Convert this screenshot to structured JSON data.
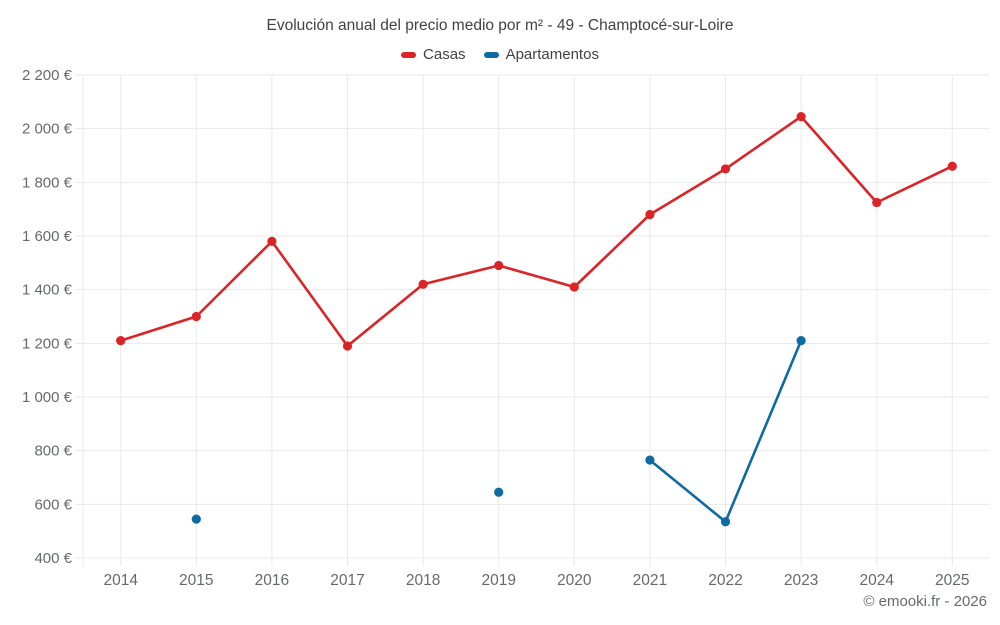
{
  "attribution": "© emooki.fr - 2026",
  "chart_data": {
    "type": "line",
    "title": "Evolución anual del precio medio por m² - 49 - Champtocé-sur-Loire",
    "xlabel": "",
    "ylabel": "",
    "categories": [
      "2014",
      "2015",
      "2016",
      "2017",
      "2018",
      "2019",
      "2020",
      "2021",
      "2022",
      "2023",
      "2024",
      "2025"
    ],
    "series": [
      {
        "name": "Casas",
        "color": "#dc2428",
        "values": [
          1210,
          1300,
          1580,
          1190,
          1420,
          1490,
          1410,
          1680,
          1850,
          2045,
          1725,
          1860
        ]
      },
      {
        "name": "Apartamentos",
        "color": "#0e6aa2",
        "values": [
          null,
          545,
          null,
          null,
          null,
          645,
          null,
          765,
          535,
          1210,
          null,
          null
        ]
      }
    ],
    "ylim": [
      400,
      2200
    ],
    "y_tick_step": 200,
    "y_tick_labels": [
      "400 €",
      "600 €",
      "800 €",
      "1 000 €",
      "1 200 €",
      "1 400 €",
      "1 600 €",
      "1 800 €",
      "2 000 €",
      "2 200 €"
    ],
    "grid": "on",
    "legend_position": "top",
    "grid_color": "#e9e9e9",
    "text_color": "#66696c",
    "currency": "€"
  }
}
